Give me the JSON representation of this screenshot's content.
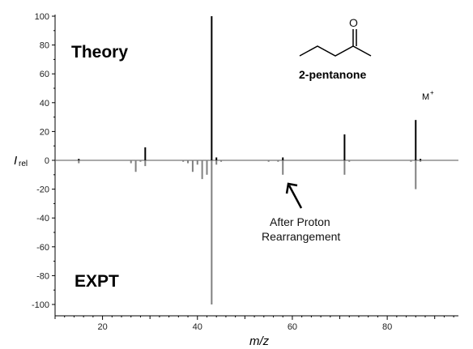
{
  "chart_data": {
    "type": "bar",
    "xlabel": "m/z",
    "ylabel_main": "I",
    "ylabel_sub": "rel",
    "xlim": [
      10,
      95
    ],
    "ylim": [
      -105,
      100
    ],
    "xticks": [
      20,
      40,
      60,
      80
    ],
    "yticks": [
      100,
      80,
      60,
      40,
      20,
      0,
      -20,
      -40,
      -60,
      -80,
      -100
    ],
    "series": [
      {
        "name": "Theory",
        "color": "#000000",
        "points": [
          {
            "x": 15,
            "y": 1
          },
          {
            "x": 29,
            "y": 9
          },
          {
            "x": 43,
            "y": 100
          },
          {
            "x": 44,
            "y": 2
          },
          {
            "x": 58,
            "y": 2
          },
          {
            "x": 71,
            "y": 18
          },
          {
            "x": 86,
            "y": 28
          },
          {
            "x": 87,
            "y": 1
          }
        ]
      },
      {
        "name": "EXPT",
        "color": "#808080",
        "points": [
          {
            "x": 15,
            "y": -2
          },
          {
            "x": 26,
            "y": -2
          },
          {
            "x": 27,
            "y": -8
          },
          {
            "x": 28,
            "y": -1
          },
          {
            "x": 29,
            "y": -4
          },
          {
            "x": 37,
            "y": -1
          },
          {
            "x": 38,
            "y": -2
          },
          {
            "x": 39,
            "y": -8
          },
          {
            "x": 40,
            "y": -3
          },
          {
            "x": 41,
            "y": -13
          },
          {
            "x": 42,
            "y": -10
          },
          {
            "x": 43,
            "y": -100
          },
          {
            "x": 44,
            "y": -3
          },
          {
            "x": 45,
            "y": -1
          },
          {
            "x": 55,
            "y": -1
          },
          {
            "x": 57,
            "y": -1
          },
          {
            "x": 58,
            "y": -10
          },
          {
            "x": 71,
            "y": -10
          },
          {
            "x": 72,
            "y": -1
          },
          {
            "x": 85,
            "y": -1
          },
          {
            "x": 86,
            "y": -20
          },
          {
            "x": 87,
            "y": -1
          }
        ]
      }
    ],
    "labels": {
      "theory": "Theory",
      "expt": "EXPT",
      "compound": "2-pentanone",
      "oxygen": "O",
      "molecular_ion": "M",
      "molecular_ion_sup": "+",
      "annotation_line1": "After Proton",
      "annotation_line2": "Rearrangement"
    }
  }
}
